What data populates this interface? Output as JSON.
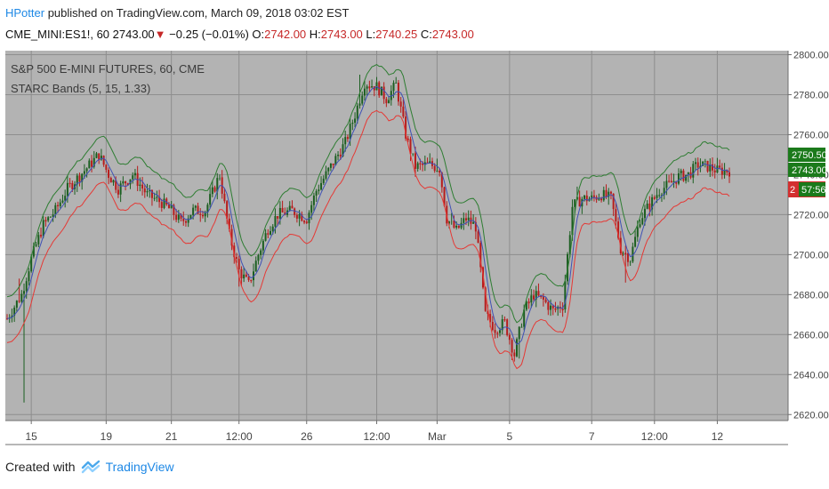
{
  "header": {
    "author": "HPotter",
    "published_text": "published on TradingView.com, March 09, 2018 03:02 EST",
    "symbol": "CME_MINI:ES1!, 60",
    "last": "2743.00",
    "change_arrow": "▼",
    "change": "−0.25 (−0.01%)",
    "o_label": "O:",
    "o": "2742.00",
    "h_label": "H:",
    "h": "2743.00",
    "l_label": "L:",
    "l": "2740.25",
    "c_label": "C:",
    "c": "2743.00"
  },
  "legend": {
    "title": "S&P 500 E-MINI FUTURES, 60, CME",
    "indicator": "STARC Bands (5, 15, 1.33)"
  },
  "price_tags": {
    "upper": "2750.50",
    "last": "2743.00",
    "countdown": "57:56",
    "lower_partial": "2"
  },
  "footer": {
    "created_with": "Created with",
    "brand": "TradingView"
  },
  "colors": {
    "plot_bg": "#b3b3b3",
    "grid": "#8e8e8e",
    "up_bar": "#1b5e20",
    "down_bar": "#b71c1c",
    "upper_band": "#2e7d32",
    "lower_band": "#e53935",
    "midline": "#3f51b5",
    "tag_green": "#1b7a1b",
    "tag_red": "#d32f2f"
  },
  "chart_data": {
    "type": "candlestick",
    "title": "S&P 500 E-MINI FUTURES, 60, CME",
    "ylim": [
      2617,
      2802
    ],
    "y_ticks": [
      "2800.00",
      "2780.00",
      "2760.00",
      "2740.00",
      "2720.00",
      "2700.00",
      "2680.00",
      "2660.00",
      "2640.00",
      "2620.00"
    ],
    "y_tick_values": [
      2800,
      2780,
      2760,
      2740,
      2720,
      2700,
      2680,
      2660,
      2640,
      2620
    ],
    "x_ticks": [
      "15",
      "19",
      "21",
      "12:00",
      "26",
      "12:00",
      "Mar",
      "5",
      "7",
      "12:00",
      "12"
    ],
    "x_tick_bar_index": [
      10,
      41,
      68,
      96,
      124,
      153,
      178,
      208,
      242,
      268,
      294
    ],
    "bar_count": 300,
    "price_path": [
      [
        0,
        2668
      ],
      [
        6,
        2680
      ],
      [
        10,
        2698
      ],
      [
        15,
        2715
      ],
      [
        20,
        2722
      ],
      [
        25,
        2733
      ],
      [
        32,
        2742
      ],
      [
        38,
        2750
      ],
      [
        42,
        2740
      ],
      [
        46,
        2733
      ],
      [
        52,
        2740
      ],
      [
        58,
        2730
      ],
      [
        64,
        2726
      ],
      [
        68,
        2722
      ],
      [
        72,
        2716
      ],
      [
        77,
        2722
      ],
      [
        82,
        2722
      ],
      [
        88,
        2740
      ],
      [
        92,
        2710
      ],
      [
        96,
        2692
      ],
      [
        100,
        2685
      ],
      [
        104,
        2700
      ],
      [
        108,
        2713
      ],
      [
        112,
        2720
      ],
      [
        118,
        2722
      ],
      [
        124,
        2718
      ],
      [
        128,
        2732
      ],
      [
        134,
        2744
      ],
      [
        140,
        2756
      ],
      [
        144,
        2770
      ],
      [
        148,
        2786
      ],
      [
        153,
        2784
      ],
      [
        157,
        2778
      ],
      [
        161,
        2785
      ],
      [
        165,
        2760
      ],
      [
        169,
        2744
      ],
      [
        175,
        2745
      ],
      [
        179,
        2743
      ],
      [
        182,
        2718
      ],
      [
        186,
        2712
      ],
      [
        190,
        2718
      ],
      [
        194,
        2714
      ],
      [
        198,
        2670
      ],
      [
        202,
        2663
      ],
      [
        206,
        2666
      ],
      [
        210,
        2650
      ],
      [
        214,
        2672
      ],
      [
        218,
        2680
      ],
      [
        222,
        2677
      ],
      [
        226,
        2672
      ],
      [
        230,
        2675
      ],
      [
        234,
        2724
      ],
      [
        238,
        2728
      ],
      [
        242,
        2728
      ],
      [
        246,
        2730
      ],
      [
        250,
        2728
      ],
      [
        254,
        2703
      ],
      [
        258,
        2698
      ],
      [
        262,
        2718
      ],
      [
        266,
        2725
      ],
      [
        270,
        2732
      ],
      [
        274,
        2735
      ],
      [
        278,
        2739
      ],
      [
        282,
        2740
      ],
      [
        286,
        2745
      ],
      [
        290,
        2744
      ],
      [
        294,
        2742
      ]
    ],
    "bands": {
      "upper_offset": 11,
      "lower_offset": 12,
      "midline_length": 5
    }
  }
}
